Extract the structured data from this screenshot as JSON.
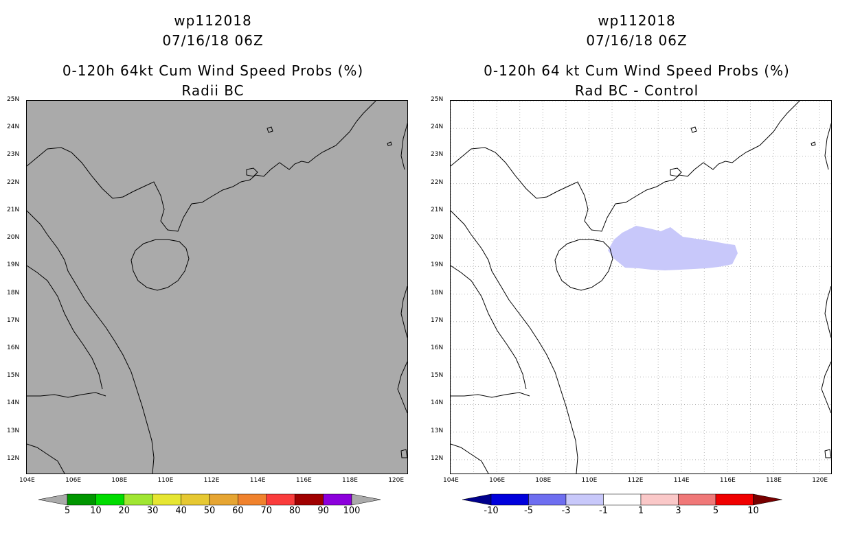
{
  "left_panel": {
    "storm_id": "wp112018",
    "datetime": "07/16/18 06Z",
    "title": "0-120h 64kt Cum Wind Speed Probs (%)",
    "subtitle": "Radii BC",
    "background_color": "#aaaaaa",
    "colorbar": {
      "labels": [
        "5",
        "10",
        "20",
        "30",
        "40",
        "50",
        "60",
        "70",
        "80",
        "90",
        "100"
      ],
      "colors": [
        "#009600",
        "#00dc00",
        "#a0e632",
        "#e6e632",
        "#e6c832",
        "#e6a532",
        "#f0822d",
        "#fa3c3c",
        "#a00000",
        "#8c00dc"
      ],
      "end_color": "#aaaaaa"
    }
  },
  "right_panel": {
    "storm_id": "wp112018",
    "datetime": "07/16/18 06Z",
    "title": "0-120h 64 kt Cum Wind Speed Probs (%)",
    "subtitle": "Rad BC - Control",
    "background_color": "#ffffff",
    "prob_area": {
      "color": "#c8c8fa",
      "value_range": "-3 to -1"
    },
    "colorbar": {
      "labels": [
        "-10",
        "-5",
        "-3",
        "-1",
        "1",
        "3",
        "5",
        "10"
      ],
      "colors": [
        "#0000dc",
        "#6e6ef0",
        "#c8c8fa",
        "#ffffff",
        "#fac8c8",
        "#f07878",
        "#f00000"
      ],
      "end_low": "#00008c",
      "end_high": "#780000"
    }
  },
  "map_extent": {
    "lon": [
      104,
      120.5
    ],
    "lat": [
      11.5,
      25
    ]
  },
  "lat_labels": [
    "12N",
    "13N",
    "14N",
    "15N",
    "16N",
    "17N",
    "18N",
    "19N",
    "20N",
    "21N",
    "22N",
    "23N",
    "24N",
    "25N"
  ],
  "lon_labels": [
    "104E",
    "106E",
    "108E",
    "110E",
    "112E",
    "114E",
    "116E",
    "118E",
    "120E"
  ],
  "lat_values": [
    12,
    13,
    14,
    15,
    16,
    17,
    18,
    19,
    20,
    21,
    22,
    23,
    24,
    25
  ],
  "lon_values": [
    104,
    106,
    108,
    110,
    112,
    114,
    116,
    118,
    120
  ]
}
